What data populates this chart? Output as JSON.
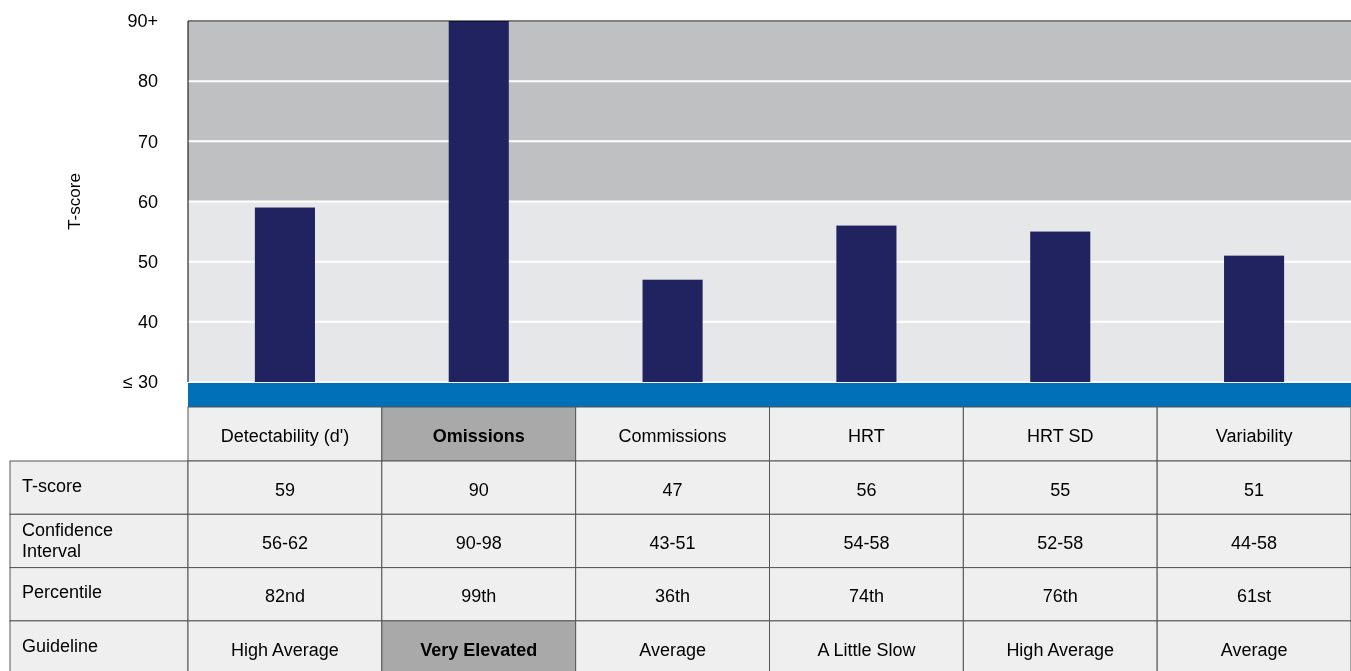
{
  "chart_data": {
    "type": "bar",
    "ylabel": "T-score",
    "categories": [
      "Detectability (d')",
      "Omissions",
      "Commissions",
      "HRT",
      "HRT SD",
      "Variability"
    ],
    "values": [
      59,
      90,
      47,
      56,
      55,
      51
    ],
    "color": "#20235f",
    "ylim": [
      30,
      90
    ],
    "yticks": [
      {
        "value": 30,
        "label": "≤ 30"
      },
      40,
      50,
      60,
      70,
      80,
      {
        "value": 90,
        "label": "90+"
      }
    ],
    "grid": "y",
    "data_labels": true,
    "bands": [
      {
        "axis": "y",
        "from": 30,
        "to": 60,
        "color": "#e6e7e9"
      },
      {
        "axis": "y",
        "from": 60,
        "to": 90,
        "color": "#bfc0c2"
      }
    ],
    "annotations": [
      "T-score",
      "Confidence Interval",
      "Percentile",
      "Guideline",
      "56-62",
      "90-98",
      "43-51",
      "54-58",
      "52-58",
      "44-58",
      "82nd",
      "99th",
      "36th",
      "74th",
      "76th",
      "61st",
      "High Average",
      "Very Elevated",
      "Average",
      "A Little Slow",
      "High Average",
      "Average"
    ]
  }
}
